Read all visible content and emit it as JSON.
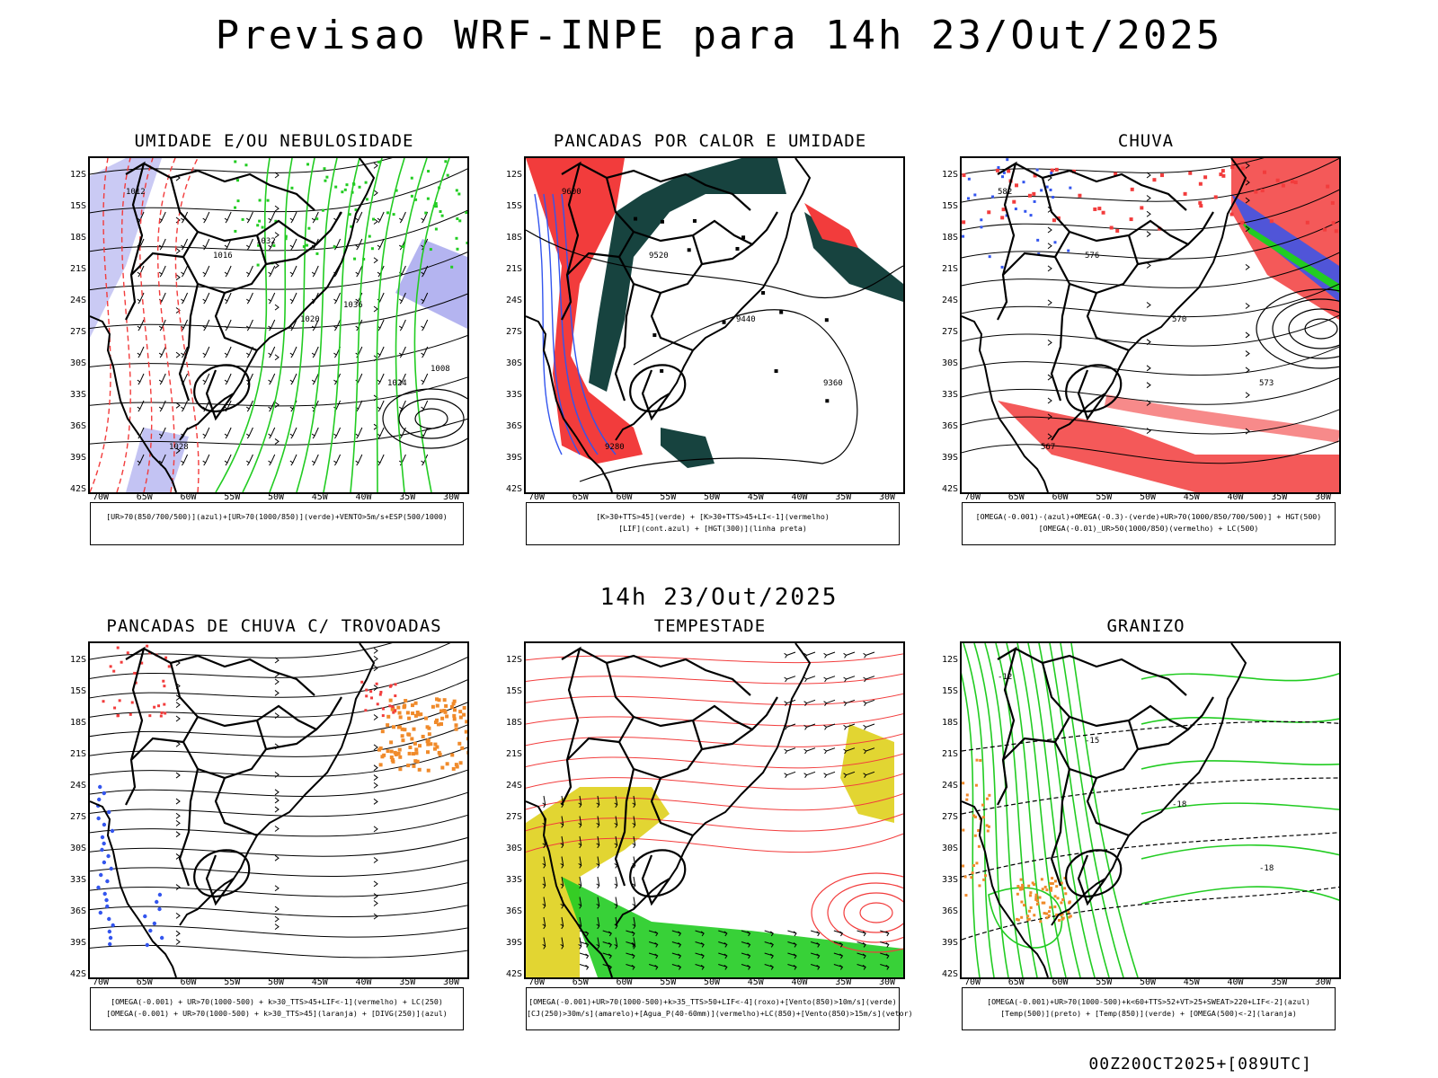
{
  "title": "Previsao WRF-INPE  para 14h 23/Out/2025",
  "subtitle": "14h 23/Out/2025",
  "footer": "00Z20OCT2025+[089UTC]",
  "axes": {
    "lat_labels": [
      "12S",
      "15S",
      "18S",
      "21S",
      "24S",
      "27S",
      "30S",
      "33S",
      "36S",
      "39S",
      "42S"
    ],
    "lon_labels": [
      "70W",
      "65W",
      "60W",
      "55W",
      "50W",
      "45W",
      "40W",
      "35W",
      "30W"
    ]
  },
  "panels": [
    {
      "id": "umidade",
      "title": "UMIDADE E/OU NEBULOSIDADE",
      "legend": [
        "[UR>70(850/700/500)](azul)+[UR>70(1000/850)](verde)+VENTO>5m/s+ESP(500/1000)"
      ],
      "contour_labels": [
        "1012",
        "1016",
        "1020",
        "1024",
        "1028",
        "1032",
        "1036",
        "1008"
      ]
    },
    {
      "id": "pancadas-calor",
      "title": "PANCADAS POR CALOR E UMIDADE",
      "legend": [
        "[K>30+TTS>45](verde) + [K>30+TTS>45+LI<-1](vermelho)",
        "[LIF](cont.azul) + [HGT(300)](linha preta)"
      ],
      "contour_labels": [
        "9600",
        "9520",
        "9440",
        "9360",
        "9280"
      ]
    },
    {
      "id": "chuva",
      "title": "CHUVA",
      "legend": [
        "[OMEGA(-0.001)-(azul)+OMEGA(-0.3)-(verde)+UR>70(1000/850/700/500)] + HGT(500)",
        "[OMEGA(-0.01)_UR>50(1000/850)(vermelho) + LC(500)"
      ],
      "contour_labels": [
        "582",
        "576",
        "570",
        "573",
        "567"
      ]
    },
    {
      "id": "pancadas-trovoadas",
      "title": "PANCADAS DE CHUVA C/ TROVOADAS",
      "legend": [
        "[OMEGA(-0.001) + UR>70(1000-500) + k>30_TTS>45+LIF<-1](vermelho) + LC(250)",
        "[OMEGA(-0.001) + UR>70(1000-500) + k>30_TTS>45](laranja) + [DIVG(250)](azul)"
      ],
      "contour_labels": []
    },
    {
      "id": "tempestade",
      "title": "TEMPESTADE",
      "legend": [
        "[OMEGA(-0.001)+UR>70(1000-500)+k>35_TTS>50+LIF<-4](roxo)+[Vento(850)>10m/s](verde)",
        "[CJ(250)>30m/s](amarelo)+[Agua_P(40-60mm)](vermelho)+LC(850)+[Vento(850)>15m/s](vetor)"
      ],
      "contour_labels": []
    },
    {
      "id": "granizo",
      "title": "GRANIZO",
      "legend": [
        "[OMEGA(-0.001)+UR>70(1000-500)+k<60+TTS>52+VT>25+SWEAT>220+LIF<-2](azul)",
        "[Temp(500)](preto) + [Temp(850)](verde) + [OMEGA(500)<-2](laranja)"
      ],
      "contour_labels": [
        "-12",
        "-15",
        "-18",
        "-18"
      ]
    }
  ],
  "colors": {
    "red": "#f23c3c",
    "green": "#22cc22",
    "blue": "#3355ee",
    "lavender": "#b4b4f0",
    "darkteal": "#17433f",
    "yellow": "#e2d532",
    "orange": "#f08a2a"
  }
}
